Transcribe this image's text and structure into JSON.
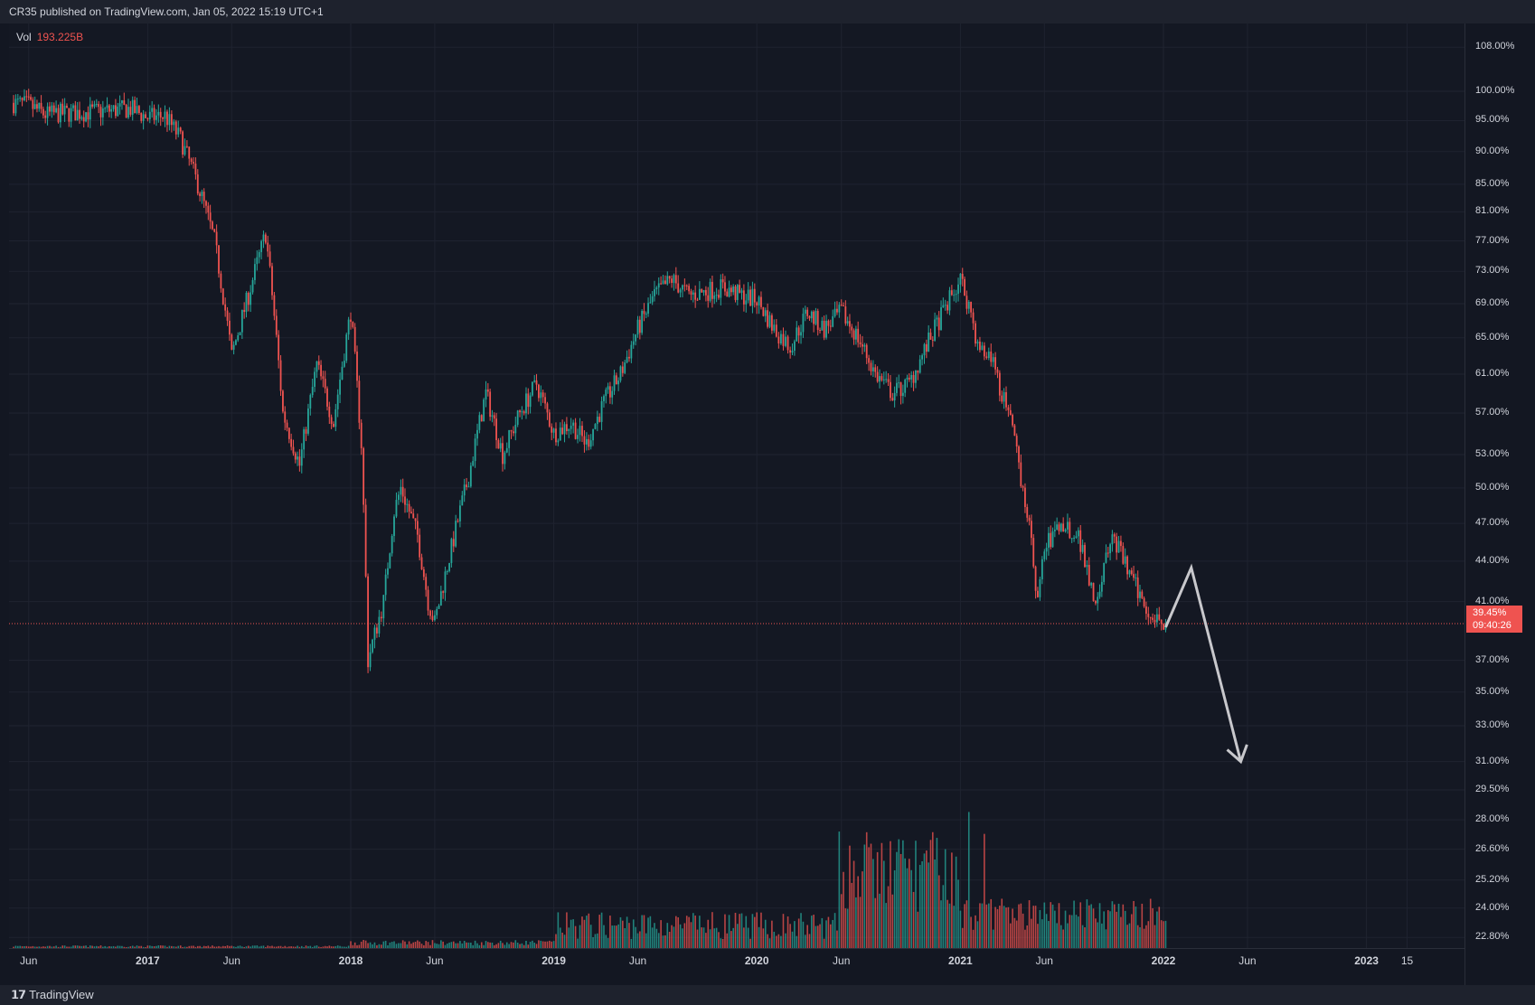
{
  "header": {
    "text": "CR35 published on TradingView.com, Jan 05, 2022 15:19 UTC+1"
  },
  "footer": {
    "brand": "TradingView"
  },
  "volume_legend": {
    "label": "Vol",
    "value": "193.225B"
  },
  "price_tag": {
    "price": "39.45%",
    "countdown": "09:40:26"
  },
  "colors": {
    "up": "#26a69a",
    "down": "#ef5350",
    "background": "#131722",
    "grid": "#1f2330",
    "arrow": "#c8c8cc"
  },
  "chart_data": {
    "type": "candlestick",
    "scale": "log",
    "price_axis_labels": [
      "108.00%",
      "100.00%",
      "95.00%",
      "90.00%",
      "85.00%",
      "81.00%",
      "77.00%",
      "73.00%",
      "69.00%",
      "65.00%",
      "61.00%",
      "57.00%",
      "53.00%",
      "50.00%",
      "47.00%",
      "44.00%",
      "41.00%",
      "37.00%",
      "35.00%",
      "33.00%",
      "31.00%",
      "29.50%",
      "28.00%",
      "26.60%",
      "25.20%",
      "24.00%",
      "22.80%"
    ],
    "time_axis_labels": [
      {
        "label": "Jun",
        "bold": false
      },
      {
        "label": "2017",
        "bold": true
      },
      {
        "label": "Jun",
        "bold": false
      },
      {
        "label": "2018",
        "bold": true
      },
      {
        "label": "Jun",
        "bold": false
      },
      {
        "label": "2019",
        "bold": true
      },
      {
        "label": "Jun",
        "bold": false
      },
      {
        "label": "2020",
        "bold": true
      },
      {
        "label": "Jun",
        "bold": false
      },
      {
        "label": "2021",
        "bold": true
      },
      {
        "label": "Jun",
        "bold": false
      },
      {
        "label": "2022",
        "bold": true
      },
      {
        "label": "Jun",
        "bold": false
      },
      {
        "label": "2023",
        "bold": true
      },
      {
        "label": "15",
        "bold": false
      }
    ],
    "series": [
      {
        "name": "CR35 price (approx.)",
        "points": [
          [
            "2016-05",
            98
          ],
          [
            "2016-06",
            97.6
          ],
          [
            "2016-07",
            96
          ],
          [
            "2016-08",
            96.2
          ],
          [
            "2016-10",
            96.5
          ],
          [
            "2016-12",
            97
          ],
          [
            "2017-01",
            95.5
          ],
          [
            "2017-02",
            95.8
          ],
          [
            "2017-03",
            92
          ],
          [
            "2017-04",
            85
          ],
          [
            "2017-05",
            77
          ],
          [
            "2017-06",
            63
          ],
          [
            "2017-07",
            70
          ],
          [
            "2017-08",
            78
          ],
          [
            "2017-09",
            57
          ],
          [
            "2017-10",
            52
          ],
          [
            "2017-11",
            62
          ],
          [
            "2017-12",
            56
          ],
          [
            "2018-01",
            68
          ],
          [
            "2018-01-20",
            54
          ],
          [
            "2018-02",
            37
          ],
          [
            "2018-03",
            41
          ],
          [
            "2018-03-20",
            48
          ],
          [
            "2018-04",
            50
          ],
          [
            "2018-05",
            46
          ],
          [
            "2018-05-20",
            41
          ],
          [
            "2018-06",
            39.5
          ],
          [
            "2018-07",
            45
          ],
          [
            "2018-08",
            51
          ],
          [
            "2018-09",
            59
          ],
          [
            "2018-10",
            53
          ],
          [
            "2018-11",
            57
          ],
          [
            "2018-12",
            60
          ],
          [
            "2019-01",
            55
          ],
          [
            "2019-02",
            56
          ],
          [
            "2019-03",
            54
          ],
          [
            "2019-04",
            58
          ],
          [
            "2019-05",
            61
          ],
          [
            "2019-06",
            66
          ],
          [
            "2019-07",
            70
          ],
          [
            "2019-08",
            72
          ],
          [
            "2019-09",
            70
          ],
          [
            "2019-11",
            71
          ],
          [
            "2019-12",
            70
          ],
          [
            "2020-01",
            69.5
          ],
          [
            "2020-02",
            66
          ],
          [
            "2020-03",
            64
          ],
          [
            "2020-04",
            68
          ],
          [
            "2020-05",
            66
          ],
          [
            "2020-06",
            68
          ],
          [
            "2020-07",
            65
          ],
          [
            "2020-08",
            61
          ],
          [
            "2020-09",
            59
          ],
          [
            "2020-10",
            60
          ],
          [
            "2020-11",
            64
          ],
          [
            "2020-12",
            68
          ],
          [
            "2021-01",
            72
          ],
          [
            "2021-01-20",
            68
          ],
          [
            "2021-02",
            64
          ],
          [
            "2021-03",
            62
          ],
          [
            "2021-04",
            56
          ],
          [
            "2021-05",
            48
          ],
          [
            "2021-05-20",
            41
          ],
          [
            "2021-06",
            45
          ],
          [
            "2021-07",
            47
          ],
          [
            "2021-08",
            46
          ],
          [
            "2021-09",
            41
          ],
          [
            "2021-10",
            46
          ],
          [
            "2021-11",
            43
          ],
          [
            "2021-12",
            40.5
          ],
          [
            "2022-01-05",
            39.45
          ]
        ]
      }
    ],
    "last_value": 39.45,
    "annotation": {
      "type": "arrow",
      "points": [
        [
          "2022-01-05",
          39.2
        ],
        [
          "2022-02-20",
          43.5
        ],
        [
          "2022-05-20",
          31.0
        ]
      ]
    }
  }
}
